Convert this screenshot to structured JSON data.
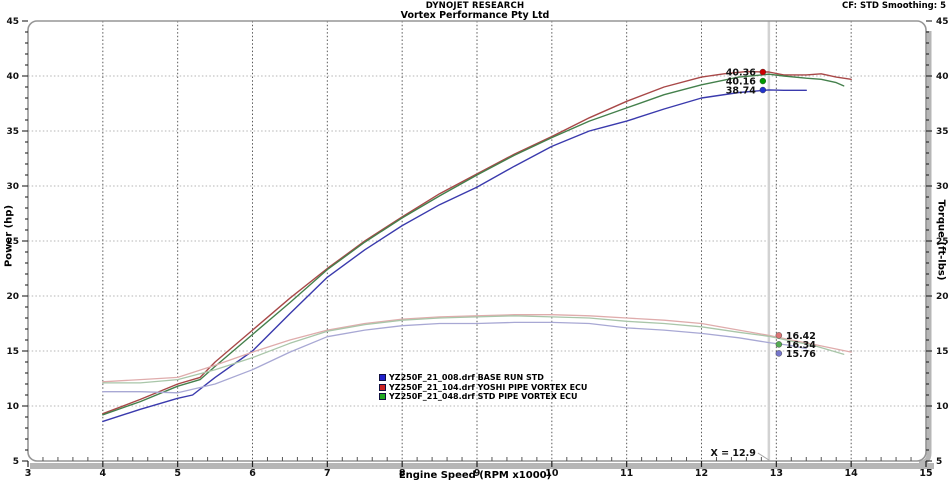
{
  "header": {
    "title": "DYNOJET RESEARCH",
    "subtitle": "Vortex Performance Pty Ltd",
    "correction_info": "CF: STD  Smoothing: 5"
  },
  "chart_data": {
    "type": "line",
    "xlabel": "Engine Speed (RPM x1000)",
    "ylabel_left": "Power (hp)",
    "ylabel_right": "Torque (ft-lbs)",
    "xlim": [
      3,
      15
    ],
    "ylim": [
      5,
      45
    ],
    "xticks": [
      3,
      4,
      5,
      6,
      7,
      8,
      9,
      10,
      11,
      12,
      13,
      14,
      15
    ],
    "yticks": [
      5,
      10,
      15,
      20,
      25,
      30,
      35,
      40,
      45
    ],
    "x_minor_step": 0.2,
    "y_minor_step": 1,
    "grid": true,
    "colors": {
      "frame": "#969696",
      "grid_v": "#5a5a5a",
      "grid_h": "#b4b4b4",
      "cursor_line": "#d2d2d2",
      "axis_band": "#b6b6b6",
      "tick": "#222222"
    },
    "series": [
      {
        "name": "YZ250F_21_008.drf BASE RUN STD",
        "measure": "power",
        "color": "#3a3aad",
        "legend_color": "#2222cc",
        "in_legend": true,
        "points": [
          [
            4,
            8.6
          ],
          [
            4.5,
            9.7
          ],
          [
            5,
            10.7
          ],
          [
            5.2,
            11.0
          ],
          [
            5.5,
            12.6
          ],
          [
            6,
            15.0
          ],
          [
            6.5,
            18.4
          ],
          [
            7,
            21.7
          ],
          [
            7.5,
            24.2
          ],
          [
            8,
            26.4
          ],
          [
            8.5,
            28.3
          ],
          [
            9,
            29.9
          ],
          [
            9.5,
            31.8
          ],
          [
            10,
            33.6
          ],
          [
            10.5,
            35.0
          ],
          [
            11,
            35.9
          ],
          [
            11.5,
            37.0
          ],
          [
            12,
            38.0
          ],
          [
            12.5,
            38.5
          ],
          [
            12.9,
            38.74
          ],
          [
            13.1,
            38.7
          ],
          [
            13.4,
            38.7
          ]
        ]
      },
      {
        "name": "YZ250F_21_104.drf YOSHI  PIPE VORTEX ECU",
        "measure": "power",
        "color": "#a84848",
        "legend_color": "#cc2222",
        "in_legend": true,
        "points": [
          [
            4,
            9.3
          ],
          [
            4.5,
            10.6
          ],
          [
            5,
            12.0
          ],
          [
            5.3,
            12.6
          ],
          [
            5.5,
            14.0
          ],
          [
            6,
            16.9
          ],
          [
            6.5,
            19.8
          ],
          [
            7,
            22.5
          ],
          [
            7.5,
            25.0
          ],
          [
            8,
            27.2
          ],
          [
            8.5,
            29.3
          ],
          [
            9,
            31.1
          ],
          [
            9.5,
            32.9
          ],
          [
            10,
            34.5
          ],
          [
            10.5,
            36.2
          ],
          [
            11,
            37.7
          ],
          [
            11.5,
            39.0
          ],
          [
            12,
            39.9
          ],
          [
            12.3,
            40.2
          ],
          [
            12.6,
            40.4
          ],
          [
            12.9,
            40.36
          ],
          [
            13.1,
            40.1
          ],
          [
            13.4,
            40.1
          ],
          [
            13.6,
            40.2
          ],
          [
            13.8,
            39.9
          ],
          [
            14,
            39.7
          ]
        ]
      },
      {
        "name": "YZ250F_21_048.drf STD PIPE VORTEX ECU",
        "measure": "power",
        "color": "#44804c",
        "legend_color": "#22aa22",
        "in_legend": true,
        "points": [
          [
            4,
            9.2
          ],
          [
            4.5,
            10.4
          ],
          [
            5,
            11.8
          ],
          [
            5.3,
            12.4
          ],
          [
            5.5,
            13.6
          ],
          [
            6,
            16.5
          ],
          [
            6.5,
            19.4
          ],
          [
            7,
            22.4
          ],
          [
            7.5,
            24.9
          ],
          [
            8,
            27.1
          ],
          [
            8.5,
            29.1
          ],
          [
            9,
            31.0
          ],
          [
            9.5,
            32.8
          ],
          [
            10,
            34.4
          ],
          [
            10.5,
            35.9
          ],
          [
            11,
            37.1
          ],
          [
            11.5,
            38.3
          ],
          [
            12,
            39.2
          ],
          [
            12.5,
            39.9
          ],
          [
            12.9,
            40.16
          ],
          [
            13.1,
            40.0
          ],
          [
            13.4,
            39.8
          ],
          [
            13.6,
            39.7
          ],
          [
            13.8,
            39.4
          ],
          [
            13.9,
            39.1
          ]
        ]
      },
      {
        "name": "YZ250F_21_008.drf BASE RUN STD (torque)",
        "measure": "torque",
        "color": "#a8a8d4",
        "legend_color": "#2222cc",
        "in_legend": false,
        "points": [
          [
            4,
            11.3
          ],
          [
            4.5,
            11.3
          ],
          [
            5,
            11.2
          ],
          [
            5.5,
            12.0
          ],
          [
            6,
            13.3
          ],
          [
            6.5,
            14.9
          ],
          [
            7,
            16.3
          ],
          [
            7.5,
            16.9
          ],
          [
            8,
            17.3
          ],
          [
            8.5,
            17.5
          ],
          [
            9,
            17.5
          ],
          [
            9.5,
            17.6
          ],
          [
            10,
            17.6
          ],
          [
            10.5,
            17.5
          ],
          [
            11,
            17.1
          ],
          [
            11.5,
            16.9
          ],
          [
            12,
            16.6
          ],
          [
            12.5,
            16.2
          ],
          [
            12.9,
            15.76
          ],
          [
            13.2,
            15.5
          ],
          [
            13.4,
            15.2
          ]
        ]
      },
      {
        "name": "YZ250F_21_104.drf YOSHI  PIPE VORTEX ECU (torque)",
        "measure": "torque",
        "color": "#dfacac",
        "legend_color": "#cc2222",
        "in_legend": false,
        "points": [
          [
            4,
            12.2
          ],
          [
            4.5,
            12.4
          ],
          [
            5,
            12.6
          ],
          [
            5.5,
            13.7
          ],
          [
            6,
            14.9
          ],
          [
            6.5,
            16.0
          ],
          [
            7,
            16.9
          ],
          [
            7.5,
            17.5
          ],
          [
            8,
            17.9
          ],
          [
            8.5,
            18.1
          ],
          [
            9,
            18.2
          ],
          [
            9.5,
            18.3
          ],
          [
            10,
            18.3
          ],
          [
            10.5,
            18.2
          ],
          [
            11,
            18.0
          ],
          [
            11.5,
            17.8
          ],
          [
            12,
            17.5
          ],
          [
            12.5,
            16.9
          ],
          [
            12.9,
            16.42
          ],
          [
            13.2,
            16.0
          ],
          [
            13.5,
            15.6
          ],
          [
            14,
            14.9
          ]
        ]
      },
      {
        "name": "YZ250F_21_048.drf STD PIPE VORTEX ECU (torque)",
        "measure": "torque",
        "color": "#a9c6a9",
        "legend_color": "#22aa22",
        "in_legend": false,
        "points": [
          [
            4,
            12.1
          ],
          [
            4.5,
            12.1
          ],
          [
            5,
            12.4
          ],
          [
            5.5,
            13.3
          ],
          [
            6,
            14.4
          ],
          [
            6.5,
            15.7
          ],
          [
            7,
            16.8
          ],
          [
            7.5,
            17.4
          ],
          [
            8,
            17.8
          ],
          [
            8.5,
            18.0
          ],
          [
            9,
            18.1
          ],
          [
            9.5,
            18.2
          ],
          [
            10,
            18.1
          ],
          [
            10.5,
            18.0
          ],
          [
            11,
            17.7
          ],
          [
            11.5,
            17.5
          ],
          [
            12,
            17.2
          ],
          [
            12.5,
            16.7
          ],
          [
            12.9,
            16.34
          ],
          [
            13.2,
            15.9
          ],
          [
            13.5,
            15.5
          ],
          [
            13.9,
            14.7
          ]
        ]
      }
    ],
    "cursor": {
      "rpm": 12.9,
      "label": "X = 12.9"
    },
    "annotations": {
      "power": [
        {
          "text": "40.36",
          "value": 40.36,
          "dot_color": "#cc0000"
        },
        {
          "text": "40.16",
          "value": 40.16,
          "dot_color": "#009900"
        },
        {
          "text": "38.74",
          "value": 38.74,
          "dot_color": "#2233cc"
        }
      ],
      "torque": [
        {
          "text": "16.42",
          "value": 16.42,
          "dot_color": "#dd7777"
        },
        {
          "text": "16.34",
          "value": 16.34,
          "dot_color": "#55aa55"
        },
        {
          "text": "15.76",
          "value": 15.76,
          "dot_color": "#7777cc"
        }
      ]
    },
    "legend_position": "bottom-center"
  }
}
